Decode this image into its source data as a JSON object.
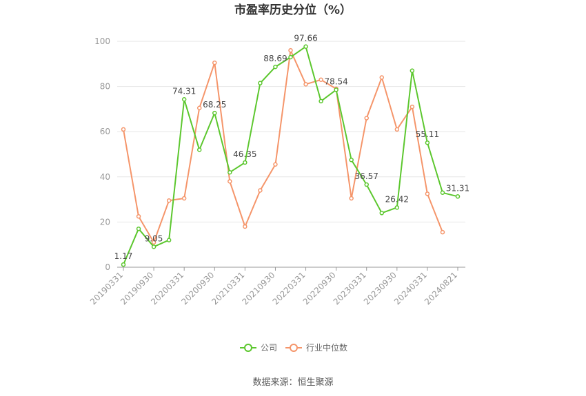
{
  "chart_data": {
    "type": "line",
    "title": "市盈率历史分位（%）",
    "xlabel": "",
    "ylabel": "",
    "ylim": [
      0,
      100
    ],
    "yticks": [
      0,
      20,
      40,
      60,
      80,
      100
    ],
    "grid": true,
    "legend_position": "bottom",
    "x_tick_labels": [
      "20190331",
      "20190930",
      "20200331",
      "20200930",
      "20210331",
      "20210930",
      "20220331",
      "20220930",
      "20230331",
      "20230930",
      "20240331",
      "20240821"
    ],
    "series": [
      {
        "name": "公司",
        "color": "#5cc72e",
        "values": [
          1.17,
          17,
          9.05,
          12,
          74.31,
          52,
          68.25,
          42,
          46.35,
          81.5,
          88.69,
          93,
          97.66,
          73.5,
          78.54,
          47.5,
          36.57,
          24,
          26.42,
          87,
          55.11,
          33,
          31.31
        ],
        "labels": [
          "1.17",
          "",
          "9.05",
          "",
          "74.31",
          "",
          "68.25",
          "",
          "46.35",
          "",
          "88.69",
          "",
          "97.66",
          "",
          "78.54",
          "",
          "36.57",
          "",
          "26.42",
          "",
          "55.11",
          "",
          "31.31"
        ]
      },
      {
        "name": "行业中位数",
        "color": "#f5956a",
        "values": [
          61,
          22.5,
          11,
          29.5,
          30.5,
          70.5,
          90.5,
          38,
          18,
          34,
          45.5,
          96,
          81,
          83,
          79,
          30.5,
          66,
          84,
          61,
          71,
          32.5,
          15.5,
          null
        ]
      }
    ]
  },
  "footer": {
    "source": "数据来源：恒生聚源"
  }
}
